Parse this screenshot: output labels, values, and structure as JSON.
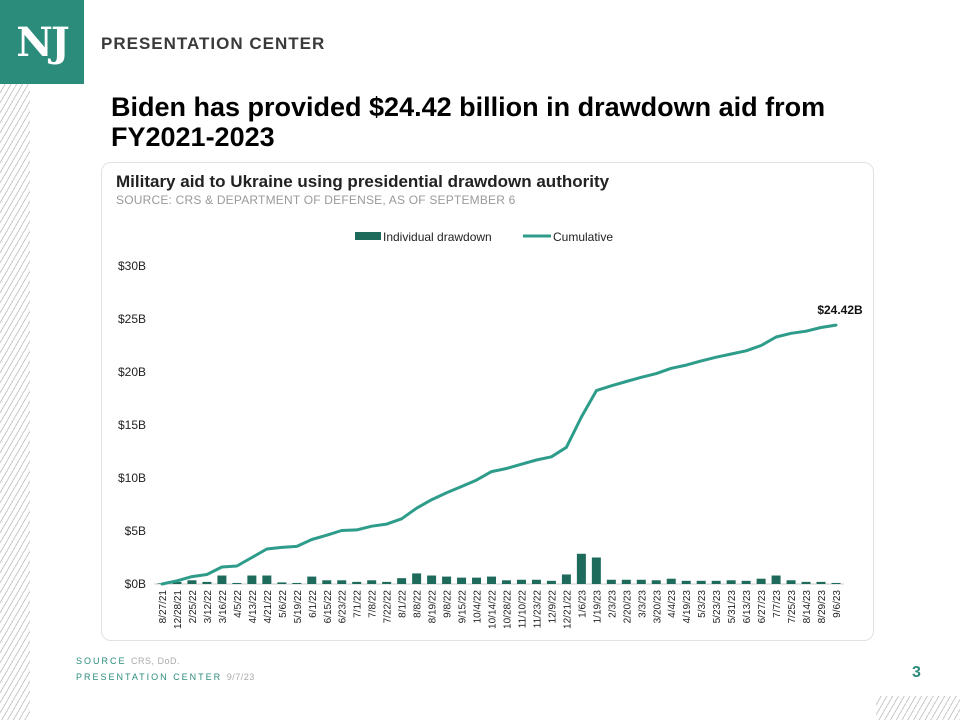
{
  "header": {
    "logo_text": "NJ",
    "brand": "PRESENTATION CENTER"
  },
  "headline": "Biden has provided $24.42 billion in drawdown aid from FY2021-2023",
  "colors": {
    "accent": "#2b8c7c",
    "bar": "#1e6b5c",
    "line": "#2e9c8a"
  },
  "footer": {
    "source_label": "SOURCE",
    "source_value": "CRS, DoD.",
    "center_label": "PRESENTATION CENTER",
    "date": "9/7/23",
    "page_number": "3"
  },
  "chart_data": {
    "type": "bar",
    "title": "Military aid to Ukraine using presidential drawdown authority",
    "subtitle": "SOURCE: CRS & DEPARTMENT OF DEFENSE, AS OF SEPTEMBER 6",
    "legend": {
      "placement": "top-center",
      "entries": [
        "Individual drawdown",
        "Cumulative"
      ]
    },
    "yticks": [
      "$0B",
      "$5B",
      "$10B",
      "$15B",
      "$20B",
      "$25B",
      "$30B"
    ],
    "ylim": [
      0,
      30
    ],
    "end_label": "$24.42B",
    "categories": [
      "8/27/21",
      "12/28/21",
      "2/25/22",
      "3/12/22",
      "3/16/22",
      "4/5/22",
      "4/13/22",
      "4/21/22",
      "5/6/22",
      "5/19/22",
      "6/1/22",
      "6/15/22",
      "6/23/22",
      "7/1/22",
      "7/8/22",
      "7/22/22",
      "8/1/22",
      "8/8/22",
      "8/19/22",
      "9/8/22",
      "9/15/22",
      "10/4/22",
      "10/14/22",
      "10/28/22",
      "11/10/22",
      "11/23/22",
      "12/9/22",
      "12/21/22",
      "1/6/23",
      "1/19/23",
      "2/3/23",
      "2/20/23",
      "3/3/23",
      "3/20/23",
      "4/4/23",
      "4/19/23",
      "5/3/23",
      "5/23/23",
      "5/31/23",
      "6/13/23",
      "6/27/23",
      "7/7/23",
      "7/25/23",
      "8/14/23",
      "8/29/23",
      "9/6/23"
    ],
    "series": [
      {
        "name": "Individual drawdown",
        "type": "bar",
        "values": [
          0.06,
          0.2,
          0.35,
          0.2,
          0.8,
          0.1,
          0.8,
          0.8,
          0.15,
          0.1,
          0.7,
          0.35,
          0.35,
          0.2,
          0.35,
          0.2,
          0.55,
          1.0,
          0.8,
          0.7,
          0.6,
          0.6,
          0.7,
          0.35,
          0.4,
          0.4,
          0.3,
          0.9,
          2.85,
          2.5,
          0.4,
          0.4,
          0.4,
          0.35,
          0.5,
          0.3,
          0.3,
          0.3,
          0.35,
          0.3,
          0.5,
          0.8,
          0.35,
          0.2,
          0.2,
          0.1
        ]
      },
      {
        "name": "Cumulative",
        "type": "line",
        "values": [
          0.0,
          0.3,
          0.7,
          0.9,
          1.6,
          1.7,
          2.5,
          3.3,
          3.45,
          3.55,
          4.2,
          4.6,
          5.05,
          5.1,
          5.45,
          5.65,
          6.15,
          7.15,
          7.95,
          8.6,
          9.2,
          9.8,
          10.6,
          10.9,
          11.3,
          11.7,
          12.0,
          12.9,
          15.75,
          18.25,
          18.7,
          19.1,
          19.5,
          19.85,
          20.35,
          20.65,
          21.05,
          21.4,
          21.7,
          22.0,
          22.5,
          23.3,
          23.65,
          23.85,
          24.2,
          24.42
        ]
      }
    ]
  }
}
